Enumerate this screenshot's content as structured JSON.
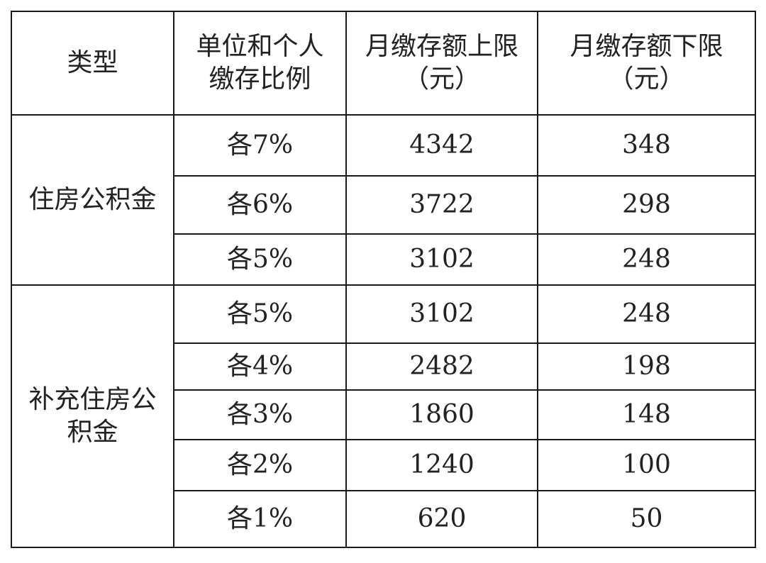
{
  "header": {
    "type": "类型",
    "ratio": [
      "单位和个人",
      "缴存比例"
    ],
    "upper": [
      "月缴存额上限",
      "（元）"
    ],
    "lower": [
      "月缴存额下限",
      "（元）"
    ]
  },
  "groups": [
    {
      "name": [
        "住房公积金"
      ],
      "rows": [
        {
          "ratio": "各7%",
          "upper": "4342",
          "lower": "348"
        },
        {
          "ratio": "各6%",
          "upper": "3722",
          "lower": "298"
        },
        {
          "ratio": "各5%",
          "upper": "3102",
          "lower": "248"
        }
      ]
    },
    {
      "name": [
        "补充住房公",
        "积金"
      ],
      "rows": [
        {
          "ratio": "各5%",
          "upper": "3102",
          "lower": "248"
        },
        {
          "ratio": "各4%",
          "upper": "2482",
          "lower": "198"
        },
        {
          "ratio": "各3%",
          "upper": "1860",
          "lower": "148"
        },
        {
          "ratio": "各2%",
          "upper": "1240",
          "lower": "100"
        },
        {
          "ratio": "各1%",
          "upper": "620",
          "lower": "50"
        }
      ]
    }
  ]
}
